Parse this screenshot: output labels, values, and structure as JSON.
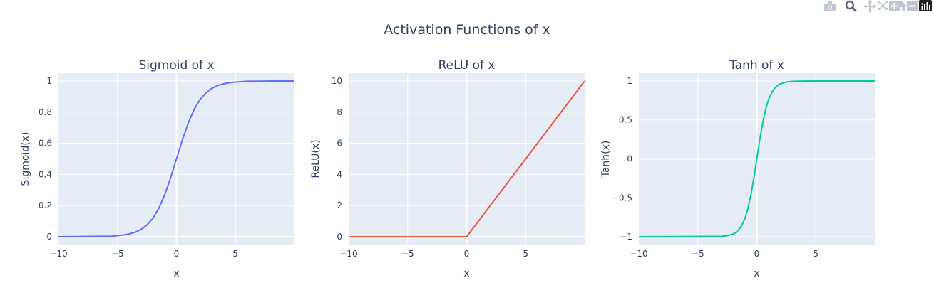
{
  "modebar": {
    "buttons": [
      "camera-icon",
      "zoom-icon",
      "pan-icon",
      "zoom-in-icon",
      "zoom-out-icon",
      "autoscale-icon",
      "reset-axes-icon",
      "plotly-logo-icon"
    ]
  },
  "colors": {
    "plot_bg": "#e5ecf6",
    "grid": "#ffffff",
    "text": "#2a3f5f",
    "modebar_icon": "#bfc6d1"
  },
  "chart_data": {
    "title": "Activation Functions of x",
    "subplots": [
      {
        "type": "line",
        "title": "Sigmoid of x",
        "xlabel": "x",
        "ylabel": "Sigmoid(x)",
        "xlim": [
          -10,
          10
        ],
        "ylim": [
          -0.05,
          1.05
        ],
        "xticks": [
          -10,
          -5,
          0,
          5
        ],
        "xtick_labels": [
          "−10",
          "−5",
          "0",
          "5"
        ],
        "yticks": [
          0,
          0.2,
          0.4,
          0.6,
          0.8,
          1
        ],
        "ytick_labels": [
          "0",
          "0.2",
          "0.4",
          "0.6",
          "0.8",
          "1"
        ],
        "grid": true,
        "color": "#636efa",
        "series": [
          {
            "x": [
              -10,
              -5.5,
              -4.5,
              -4,
              -3.5,
              -3,
              -2.5,
              -2,
              -1.5,
              -1,
              -0.5,
              0,
              0.5,
              1,
              1.5,
              2,
              2.5,
              3,
              3.5,
              4,
              4.5,
              5,
              6,
              7,
              8,
              9,
              10
            ],
            "y": [
              0.0,
              0.004,
              0.011,
              0.018,
              0.029,
              0.047,
              0.076,
              0.119,
              0.182,
              0.269,
              0.378,
              0.5,
              0.622,
              0.731,
              0.818,
              0.881,
              0.924,
              0.953,
              0.971,
              0.982,
              0.989,
              0.993,
              0.998,
              0.999,
              1.0,
              1.0,
              1.0
            ]
          }
        ]
      },
      {
        "type": "line",
        "title": "ReLU of x",
        "xlabel": "x",
        "ylabel": "ReLU(x)",
        "xlim": [
          -10,
          10
        ],
        "ylim": [
          -0.5,
          10.5
        ],
        "xticks": [
          -10,
          -5,
          0,
          5
        ],
        "xtick_labels": [
          "−10",
          "−5",
          "0",
          "5"
        ],
        "yticks": [
          0,
          2,
          4,
          6,
          8,
          10
        ],
        "ytick_labels": [
          "0",
          "2",
          "4",
          "6",
          "8",
          "10"
        ],
        "grid": true,
        "color": "#ef553b",
        "series": [
          {
            "x": [
              -10,
              0,
              10
            ],
            "y": [
              0,
              0,
              10
            ]
          }
        ]
      },
      {
        "type": "line",
        "title": "Tanh of x",
        "xlabel": "x",
        "ylabel": "Tanh(x)",
        "xlim": [
          -10,
          10
        ],
        "ylim": [
          -1.1,
          1.1
        ],
        "xticks": [
          -10,
          -5,
          0,
          5
        ],
        "xtick_labels": [
          "−10",
          "−5",
          "0",
          "5"
        ],
        "yticks": [
          -1,
          -0.5,
          0,
          0.5,
          1
        ],
        "ytick_labels": [
          "−1",
          "−0.5",
          "0",
          "0.5",
          "1"
        ],
        "grid": true,
        "color": "#00cc96",
        "series": [
          {
            "x": [
              -10,
              -3,
              -2.5,
              -2,
              -1.75,
              -1.5,
              -1.25,
              -1,
              -0.75,
              -0.5,
              -0.25,
              0,
              0.25,
              0.5,
              0.75,
              1,
              1.25,
              1.5,
              1.75,
              2,
              2.5,
              3,
              4,
              5,
              10
            ],
            "y": [
              -1,
              -0.995,
              -0.987,
              -0.964,
              -0.941,
              -0.905,
              -0.848,
              -0.762,
              -0.635,
              -0.462,
              -0.245,
              0,
              0.245,
              0.462,
              0.635,
              0.762,
              0.848,
              0.905,
              0.941,
              0.964,
              0.987,
              0.995,
              0.999,
              1.0,
              1.0
            ]
          }
        ]
      }
    ]
  }
}
